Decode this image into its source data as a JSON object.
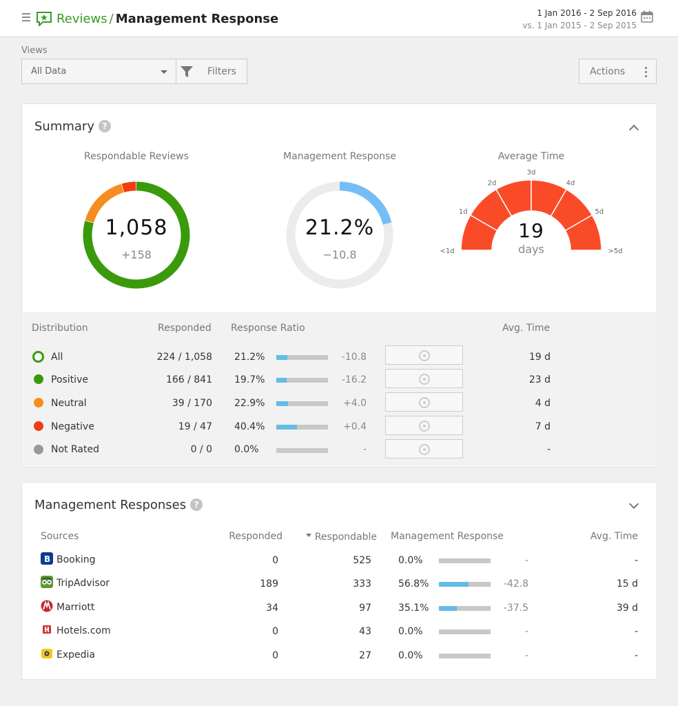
{
  "header": {
    "app_name": "Reviews",
    "separator": "/",
    "page_title": "Management Response",
    "date_range": "1 Jan 2016 - 2 Sep 2016",
    "compare_range": "vs. 1 Jan 2015 - 2 Sep 2015"
  },
  "toolbar": {
    "views_label": "Views",
    "view_value": "All Data",
    "filters_label": "Filters",
    "actions_label": "Actions"
  },
  "summary": {
    "title": "Summary",
    "help": "?",
    "respondable": {
      "title": "Respondable Reviews",
      "value": "1,058",
      "delta": "+158",
      "donut": [
        {
          "name": "Positive",
          "value": 841,
          "color": "#3a9a0c"
        },
        {
          "name": "Neutral",
          "value": 170,
          "color": "#f68d1e"
        },
        {
          "name": "Negative",
          "value": 47,
          "color": "#f23c14"
        }
      ]
    },
    "management": {
      "title": "Management Response",
      "value": "21.2%",
      "delta": "−10.8",
      "fraction": 0.212,
      "color": "#75bdf5",
      "track_color": "#ececec"
    },
    "avg_time": {
      "title": "Average Time",
      "value": "19",
      "unit": "days",
      "color": "#fa4b28",
      "ticks": [
        "<1d",
        "1d",
        "2d",
        "3d",
        "4d",
        "5d",
        ">5d"
      ]
    }
  },
  "distribution": {
    "headers": {
      "distribution": "Distribution",
      "responded": "Responded",
      "ratio": "Response Ratio",
      "avg": "Avg. Time"
    },
    "rows": [
      {
        "label": "All",
        "responded": "224 / 1,058",
        "ratio": "21.2%",
        "ratio_value": 0.212,
        "delta": "-10.8",
        "avg": "19 d",
        "color": "#3a9a0c",
        "ring": true
      },
      {
        "label": "Positive",
        "responded": "166 / 841",
        "ratio": "19.7%",
        "ratio_value": 0.197,
        "delta": "-16.2",
        "avg": "23 d",
        "color": "#3a9a0c",
        "ring": false
      },
      {
        "label": "Neutral",
        "responded": "39 / 170",
        "ratio": "22.9%",
        "ratio_value": 0.229,
        "delta": "+4.0",
        "avg": "4 d",
        "color": "#f68d1e",
        "ring": false
      },
      {
        "label": "Negative",
        "responded": "19 / 47",
        "ratio": "40.4%",
        "ratio_value": 0.404,
        "delta": "+0.4",
        "avg": "7 d",
        "color": "#f23c14",
        "ring": false
      },
      {
        "label": "Not Rated",
        "responded": "0 / 0",
        "ratio": "0.0%",
        "ratio_value": 0,
        "delta": "-",
        "avg": "-",
        "color": "#999999",
        "ring": false
      }
    ]
  },
  "management_responses": {
    "title": "Management Responses",
    "help": "?",
    "headers": {
      "sources": "Sources",
      "responded": "Responded",
      "respondable": "Respondable",
      "management_response": "Management Response",
      "avg": "Avg. Time"
    },
    "rows": [
      {
        "source": "Booking",
        "icon": "booking-icon",
        "icon_color": "#0c3b8f",
        "responded": "0",
        "respondable": "525",
        "pct": "0.0%",
        "pct_value": 0,
        "delta": "-",
        "avg": "-"
      },
      {
        "source": "TripAdvisor",
        "icon": "tripadvisor-icon",
        "icon_color": "#5b9a35",
        "responded": "189",
        "respondable": "333",
        "pct": "56.8%",
        "pct_value": 0.568,
        "delta": "-42.8",
        "avg": "15 d"
      },
      {
        "source": "Marriott",
        "icon": "marriott-icon",
        "icon_color": "#c1272d",
        "responded": "34",
        "respondable": "97",
        "pct": "35.1%",
        "pct_value": 0.351,
        "delta": "-37.5",
        "avg": "39 d"
      },
      {
        "source": "Hotels.com",
        "icon": "hotels-icon",
        "icon_color": "#d32f2f",
        "responded": "0",
        "respondable": "43",
        "pct": "0.0%",
        "pct_value": 0,
        "delta": "-",
        "avg": "-"
      },
      {
        "source": "Expedia",
        "icon": "expedia-icon",
        "icon_color": "#f5c518",
        "responded": "0",
        "respondable": "27",
        "pct": "0.0%",
        "pct_value": 0,
        "delta": "-",
        "avg": "-"
      }
    ]
  }
}
